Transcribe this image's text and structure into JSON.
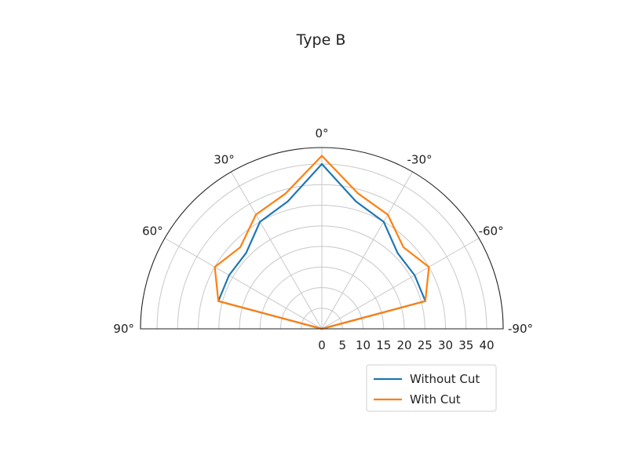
{
  "chart_data": {
    "type": "polar-line",
    "title": "Type B",
    "theta_range_deg": [
      -90,
      90
    ],
    "theta_zero": "top",
    "theta_direction": "clockwise-to-negative",
    "theta_ticks": [
      "0°",
      "30°",
      "60°",
      "90°",
      "-30°",
      "-60°",
      "-90°"
    ],
    "theta_tick_values": [
      0,
      30,
      60,
      90,
      -30,
      -60,
      -90
    ],
    "r_range": [
      0,
      44
    ],
    "r_ticks": [
      0,
      5,
      10,
      15,
      20,
      25,
      30,
      35,
      40
    ],
    "r_tick_labels": [
      "0",
      "5",
      "10",
      "15",
      "20",
      "25",
      "30",
      "35",
      "40"
    ],
    "grid": true,
    "legend": {
      "position": "bottom-right"
    },
    "theta_deg": [
      -90,
      -75,
      -60,
      -45,
      -30,
      -15,
      0,
      15,
      30,
      45,
      60,
      75,
      90
    ],
    "series": [
      {
        "name": "Without Cut",
        "color": "#1f77b4",
        "r": [
          0,
          26,
          26,
          26,
          30,
          32,
          40,
          32,
          30,
          26,
          26,
          26,
          0
        ]
      },
      {
        "name": "With Cut",
        "color": "#ff7f0e",
        "r": [
          0,
          26,
          30,
          28,
          32,
          34,
          42,
          34,
          32,
          28,
          30,
          26,
          0
        ]
      }
    ]
  }
}
